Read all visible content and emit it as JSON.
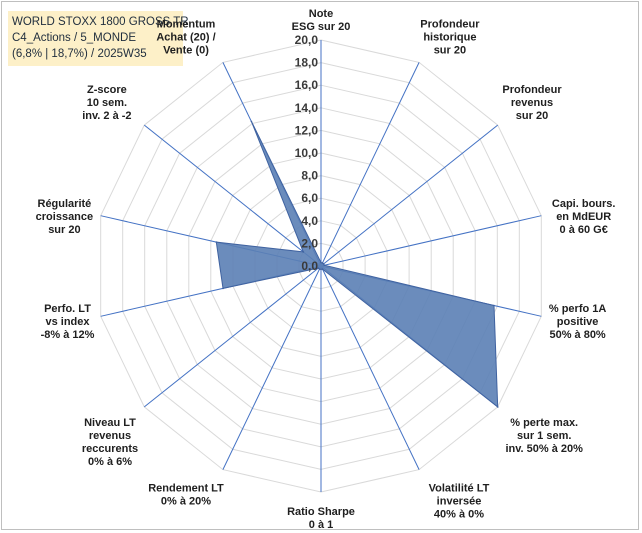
{
  "chart_data": {
    "type": "radar",
    "title_lines": [
      "WORLD STOXX 1800 GROSS TR",
      "C4_Actions / 5_MONDE",
      "(6,8% | 18,7%) / 2025W35"
    ],
    "r_range": [
      0,
      20
    ],
    "r_ticks": [
      "0,0",
      "2,0",
      "4,0",
      "6,0",
      "8,0",
      "10,0",
      "12,0",
      "14,0",
      "16,0",
      "18,0",
      "20,0"
    ],
    "grid": true,
    "legend": "none",
    "fill_color": "#5b7fb5",
    "line_color": "#3f62a0",
    "axes": [
      {
        "label": [
          "Note",
          "ESG sur 20"
        ],
        "value": 0.3
      },
      {
        "label": [
          "Profondeur",
          "historique",
          "sur 20"
        ],
        "value": 0.3
      },
      {
        "label": [
          "Profondeur",
          "revenus",
          "sur 20"
        ],
        "value": 0.3
      },
      {
        "label": [
          "Capi. bours.",
          "en MdEUR",
          "0 à 60 G€"
        ],
        "value": 0.3
      },
      {
        "label": [
          "% perfo 1A",
          "positive",
          "50% à 80%"
        ],
        "value": 15.7
      },
      {
        "label": [
          "% perte max.",
          "sur 1 sem.",
          "inv. 50% à 20%"
        ],
        "value": 20.0
      },
      {
        "label": [
          "Volatilité LT",
          "inversée",
          "40% à 0%"
        ],
        "value": 0.3
      },
      {
        "label": [
          "Ratio Sharpe",
          "0 à 1"
        ],
        "value": 0.3
      },
      {
        "label": [
          "Rendement LT",
          "0% à 20%"
        ],
        "value": 0.3
      },
      {
        "label": [
          "Niveau LT",
          "revenus",
          "reccurents",
          "0% à 6%"
        ],
        "value": 0.3
      },
      {
        "label": [
          "Perfo. LT",
          "vs index",
          "-8% à 12%"
        ],
        "value": 8.9
      },
      {
        "label": [
          "Régularité",
          "croissance",
          "sur 20"
        ],
        "value": 9.5
      },
      {
        "label": [
          "Z-score",
          "10 sem.",
          "inv. 2 à -2"
        ],
        "value": 2.0
      },
      {
        "label": [
          "Momentum",
          "Achat (20) /",
          "Vente (0)"
        ],
        "value": 14.2
      }
    ]
  }
}
